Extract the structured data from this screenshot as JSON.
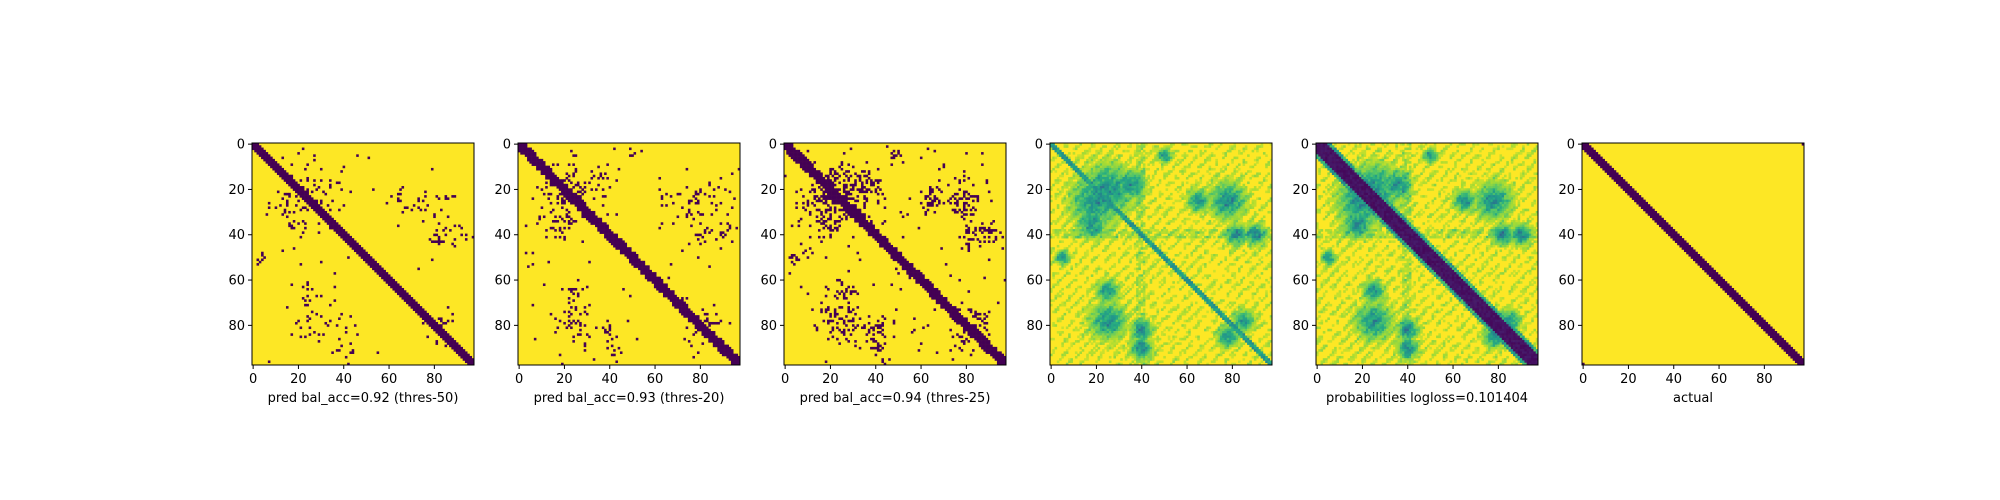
{
  "colormap": {
    "name": "viridis",
    "low": "#440154",
    "high": "#fde725"
  },
  "chart_data": [
    {
      "type": "heatmap",
      "xlabel": "pred bal_acc=0.92 (thres-50)",
      "size": 98,
      "xlim": [
        0,
        98
      ],
      "ylim": [
        98,
        0
      ],
      "xticks": [
        "0",
        "20",
        "40",
        "60",
        "80"
      ],
      "yticks": [
        "0",
        "20",
        "40",
        "60",
        "80"
      ],
      "values": "binary",
      "diag_band": [
        2,
        2
      ],
      "offdiag_contact_density": 0.018
    },
    {
      "type": "heatmap",
      "xlabel": "pred bal_acc=0.93 (thres-20)",
      "size": 98,
      "xlim": [
        0,
        98
      ],
      "ylim": [
        98,
        0
      ],
      "xticks": [
        "0",
        "20",
        "40",
        "60",
        "80"
      ],
      "yticks": [
        "0",
        "20",
        "40",
        "60",
        "80"
      ],
      "values": "binary",
      "diag_band": [
        2,
        3
      ],
      "offdiag_contact_density": 0.025
    },
    {
      "type": "heatmap",
      "xlabel": "pred bal_acc=0.94 (thres-25)",
      "size": 98,
      "xlim": [
        0,
        98
      ],
      "ylim": [
        98,
        0
      ],
      "xticks": [
        "0",
        "20",
        "40",
        "60",
        "80"
      ],
      "yticks": [
        "0",
        "20",
        "40",
        "60",
        "80"
      ],
      "values": "binary",
      "diag_band": [
        2,
        3
      ],
      "offdiag_contact_density": 0.045
    },
    {
      "type": "heatmap",
      "xlabel": "",
      "size": 98,
      "xlim": [
        0,
        98
      ],
      "ylim": [
        98,
        0
      ],
      "xticks": [
        "0",
        "20",
        "40",
        "60",
        "80"
      ],
      "yticks": [
        "0",
        "20",
        "40",
        "60",
        "80"
      ],
      "values": "continuous",
      "diag_band": [
        0,
        1
      ],
      "note_range": [
        0,
        1
      ]
    },
    {
      "type": "heatmap",
      "xlabel": "probabilities logloss=0.101404",
      "size": 98,
      "xlim": [
        0,
        98
      ],
      "ylim": [
        98,
        0
      ],
      "xticks": [
        "0",
        "20",
        "40",
        "60",
        "80"
      ],
      "yticks": [
        "0",
        "20",
        "40",
        "60",
        "80"
      ],
      "values": "continuous",
      "diag_band": [
        2,
        4
      ]
    },
    {
      "type": "heatmap",
      "xlabel": "actual",
      "size": 98,
      "xlim": [
        0,
        98
      ],
      "ylim": [
        98,
        0
      ],
      "xticks": [
        "0",
        "20",
        "40",
        "60",
        "80"
      ],
      "yticks": [
        "0",
        "20",
        "40",
        "60",
        "80"
      ],
      "values": "binary",
      "diag_band": [
        2,
        2
      ],
      "offdiag_contact_density": 0
    }
  ]
}
